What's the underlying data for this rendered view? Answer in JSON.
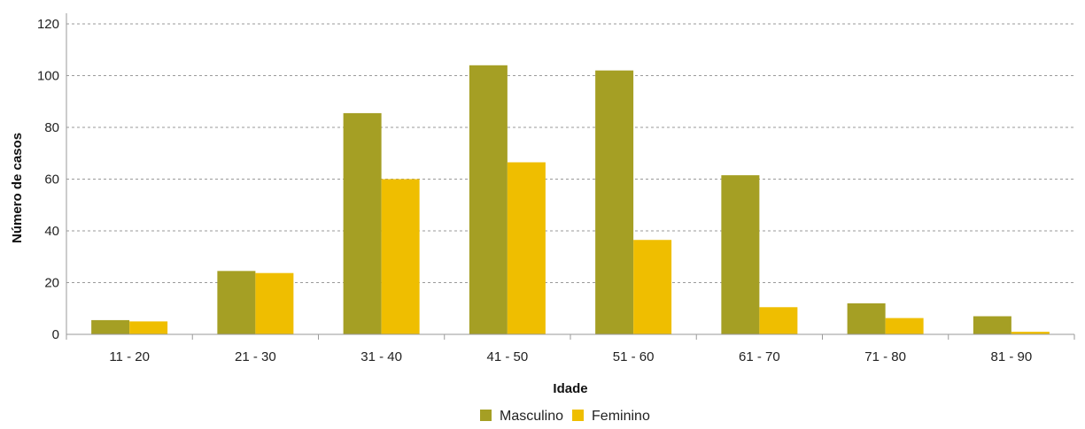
{
  "chart_data": {
    "type": "bar",
    "title": "",
    "xlabel": "Idade",
    "ylabel": "Número de casos",
    "ylim": [
      0,
      120
    ],
    "yticks": [
      0,
      20,
      40,
      60,
      80,
      100,
      120
    ],
    "grid": "horizontal dashed",
    "legend_position": "bottom",
    "categories": [
      "11 - 20",
      "21 - 30",
      "31 - 40",
      "41 - 50",
      "51 - 60",
      "61 - 70",
      "71 - 80",
      "81 - 90"
    ],
    "series": [
      {
        "name": "Masculino",
        "color": "#a59f24",
        "values": [
          5.5,
          24.5,
          85.5,
          104,
          102,
          61.5,
          12,
          7
        ]
      },
      {
        "name": "Feminino",
        "color": "#efbe00",
        "values": [
          5,
          23.7,
          60,
          66.5,
          36.5,
          10.5,
          6.3,
          1
        ]
      }
    ]
  }
}
